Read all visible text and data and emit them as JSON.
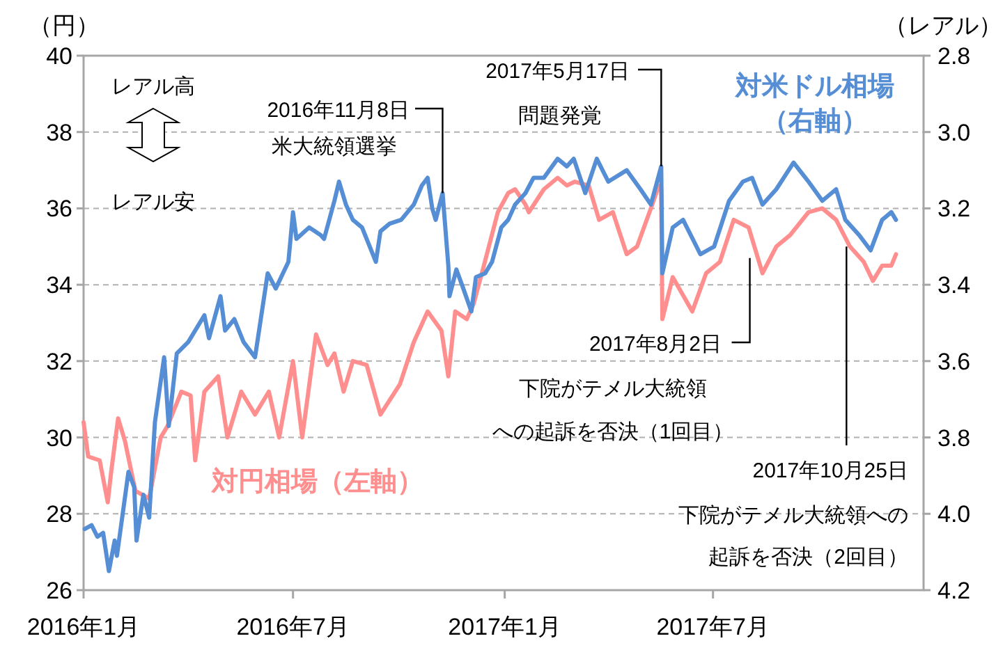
{
  "chart_data": {
    "type": "line",
    "ylabel": "（円）",
    "y2label": "（レアル）",
    "grid": "y",
    "legend": false,
    "xlim": [
      "2016-01-01",
      "2017-12-31"
    ],
    "xticks": [
      {
        "value": "2016-01-01",
        "label": "2016年1月"
      },
      {
        "value": "2016-07-01",
        "label": "2016年7月"
      },
      {
        "value": "2017-01-01",
        "label": "2017年1月"
      },
      {
        "value": "2017-07-01",
        "label": "2017年7月"
      }
    ],
    "ylim": [
      26,
      40
    ],
    "yticks": [
      26,
      28,
      30,
      32,
      34,
      36,
      38,
      40
    ],
    "y2lim": [
      4.2,
      2.8
    ],
    "y2ticks": [
      2.8,
      {
        "value": 3.0,
        "label": "3.0"
      },
      3.2,
      3.4,
      3.6,
      3.8,
      {
        "value": 4.0,
        "label": "4.0"
      },
      4.2
    ],
    "series": [
      {
        "name": "対円相場（左軸）",
        "color": "#ff8f8f",
        "x": [
          "2016-01-01",
          "2016-01-05",
          "2016-01-15",
          "2016-01-22",
          "2016-01-25",
          "2016-01-31",
          "2016-02-06",
          "2016-02-15",
          "2016-02-27",
          "2016-03-08",
          "2016-03-14",
          "2016-03-26",
          "2016-04-03",
          "2016-04-07",
          "2016-04-15",
          "2016-04-27",
          "2016-05-05",
          "2016-05-17",
          "2016-05-29",
          "2016-06-10",
          "2016-06-19",
          "2016-07-01",
          "2016-07-09",
          "2016-07-21",
          "2016-07-31",
          "2016-08-06",
          "2016-08-14",
          "2016-08-22",
          "2016-09-03",
          "2016-09-15",
          "2016-10-02",
          "2016-10-14",
          "2016-10-26",
          "2016-11-07",
          "2016-11-13",
          "2016-11-19",
          "2016-11-29",
          "2016-12-05",
          "2016-12-13",
          "2016-12-26",
          "2017-01-04",
          "2017-01-10",
          "2017-01-19",
          "2017-01-22",
          "2017-02-04",
          "2017-02-16",
          "2017-02-24",
          "2017-03-03",
          "2017-03-15",
          "2017-03-24",
          "2017-04-05",
          "2017-04-17",
          "2017-04-26",
          "2017-05-08",
          "2017-05-15",
          "2017-05-17",
          "2017-05-18",
          "2017-05-27",
          "2017-06-13",
          "2017-06-25",
          "2017-07-07",
          "2017-07-19",
          "2017-08-01",
          "2017-08-13",
          "2017-08-25",
          "2017-09-06",
          "2017-09-22",
          "2017-10-04",
          "2017-10-16",
          "2017-10-28",
          "2017-11-09",
          "2017-11-17",
          "2017-11-25",
          "2017-12-03",
          "2017-12-07"
        ],
        "values": [
          30.4,
          29.5,
          29.4,
          28.3,
          29.1,
          30.5,
          29.9,
          28.6,
          28.4,
          30.0,
          30.3,
          31.2,
          31.1,
          29.4,
          31.2,
          31.6,
          30.0,
          31.2,
          30.6,
          31.2,
          30.0,
          32.0,
          30.0,
          32.7,
          31.9,
          32.2,
          31.2,
          32.0,
          31.9,
          30.6,
          31.4,
          32.5,
          33.3,
          32.8,
          31.6,
          33.3,
          33.1,
          33.5,
          34.4,
          35.9,
          36.4,
          36.5,
          36.1,
          35.9,
          36.5,
          36.8,
          36.6,
          36.7,
          36.6,
          35.7,
          35.9,
          34.8,
          35.0,
          36.0,
          36.6,
          36.5,
          33.1,
          34.2,
          33.3,
          34.3,
          34.6,
          35.7,
          35.5,
          34.3,
          35.0,
          35.3,
          35.9,
          36.0,
          35.7,
          35.0,
          34.6,
          34.1,
          34.5,
          34.5,
          34.8
        ]
      },
      {
        "name": "対米ドル相場（右軸）",
        "color": "#558ed5",
        "axis": "y2",
        "x": [
          "2016-01-02",
          "2016-01-08",
          "2016-01-13",
          "2016-01-18",
          "2016-01-23",
          "2016-01-28",
          "2016-01-30",
          "2016-02-04",
          "2016-02-09",
          "2016-02-14",
          "2016-02-16",
          "2016-02-22",
          "2016-02-27",
          "2016-03-03",
          "2016-03-11",
          "2016-03-15",
          "2016-03-22",
          "2016-04-01",
          "2016-04-15",
          "2016-04-19",
          "2016-04-29",
          "2016-05-03",
          "2016-05-11",
          "2016-05-19",
          "2016-05-29",
          "2016-06-03",
          "2016-06-09",
          "2016-06-16",
          "2016-06-27",
          "2016-07-01",
          "2016-07-04",
          "2016-07-15",
          "2016-07-25",
          "2016-07-28",
          "2016-08-06",
          "2016-08-10",
          "2016-08-16",
          "2016-08-22",
          "2016-08-30",
          "2016-09-11",
          "2016-09-15",
          "2016-09-23",
          "2016-10-03",
          "2016-10-14",
          "2016-10-21",
          "2016-10-26",
          "2016-10-30",
          "2016-11-02",
          "2016-11-08",
          "2016-11-13",
          "2016-11-14",
          "2016-11-20",
          "2016-11-26",
          "2016-12-03",
          "2016-12-07",
          "2016-12-15",
          "2016-12-21",
          "2016-12-29",
          "2017-01-04",
          "2017-01-10",
          "2017-01-19",
          "2017-01-26",
          "2017-02-04",
          "2017-02-16",
          "2017-02-24",
          "2017-03-02",
          "2017-03-12",
          "2017-03-22",
          "2017-04-01",
          "2017-04-17",
          "2017-04-29",
          "2017-05-08",
          "2017-05-17",
          "2017-05-18",
          "2017-05-27",
          "2017-06-05",
          "2017-06-20",
          "2017-07-02",
          "2017-07-15",
          "2017-07-27",
          "2017-08-04",
          "2017-08-13",
          "2017-08-25",
          "2017-09-09",
          "2017-09-22",
          "2017-10-04",
          "2017-10-16",
          "2017-10-24",
          "2017-11-05",
          "2017-11-15",
          "2017-11-25",
          "2017-12-03",
          "2017-12-07"
        ],
        "values": [
          4.04,
          4.03,
          4.06,
          4.05,
          4.15,
          4.07,
          4.11,
          4.0,
          3.89,
          3.93,
          4.07,
          3.95,
          4.01,
          3.76,
          3.59,
          3.77,
          3.58,
          3.55,
          3.48,
          3.54,
          3.43,
          3.52,
          3.49,
          3.55,
          3.59,
          3.49,
          3.37,
          3.41,
          3.34,
          3.21,
          3.28,
          3.25,
          3.27,
          3.28,
          3.18,
          3.13,
          3.19,
          3.23,
          3.25,
          3.34,
          3.26,
          3.24,
          3.23,
          3.19,
          3.14,
          3.12,
          3.2,
          3.23,
          3.16,
          3.35,
          3.43,
          3.36,
          3.41,
          3.47,
          3.38,
          3.37,
          3.34,
          3.25,
          3.23,
          3.19,
          3.16,
          3.12,
          3.12,
          3.07,
          3.09,
          3.07,
          3.16,
          3.07,
          3.13,
          3.1,
          3.15,
          3.19,
          3.09,
          3.37,
          3.25,
          3.23,
          3.32,
          3.3,
          3.18,
          3.13,
          3.12,
          3.19,
          3.15,
          3.08,
          3.13,
          3.18,
          3.15,
          3.23,
          3.27,
          3.31,
          3.23,
          3.21,
          3.23
        ]
      }
    ],
    "annotations": [
      "レアル高",
      "レアル安",
      {
        "text": "2016年11月8日",
        "x": "2016-11-08",
        "y": 36.4
      },
      "米大統領選挙",
      {
        "text": "2017年5月17日",
        "x": "2017-05-17",
        "y": 37.1
      },
      "問題発覚",
      {
        "text": "2017年8月2日",
        "x": "2017-08-02",
        "y": 34.7
      },
      "下院がテメル大統領への起訴を否決（1回目）",
      {
        "text": "2017年10月25日",
        "x": "2017-10-25",
        "y": 35.0
      },
      "下院がテメル大統領への起訴を否決（2回目）"
    ]
  }
}
